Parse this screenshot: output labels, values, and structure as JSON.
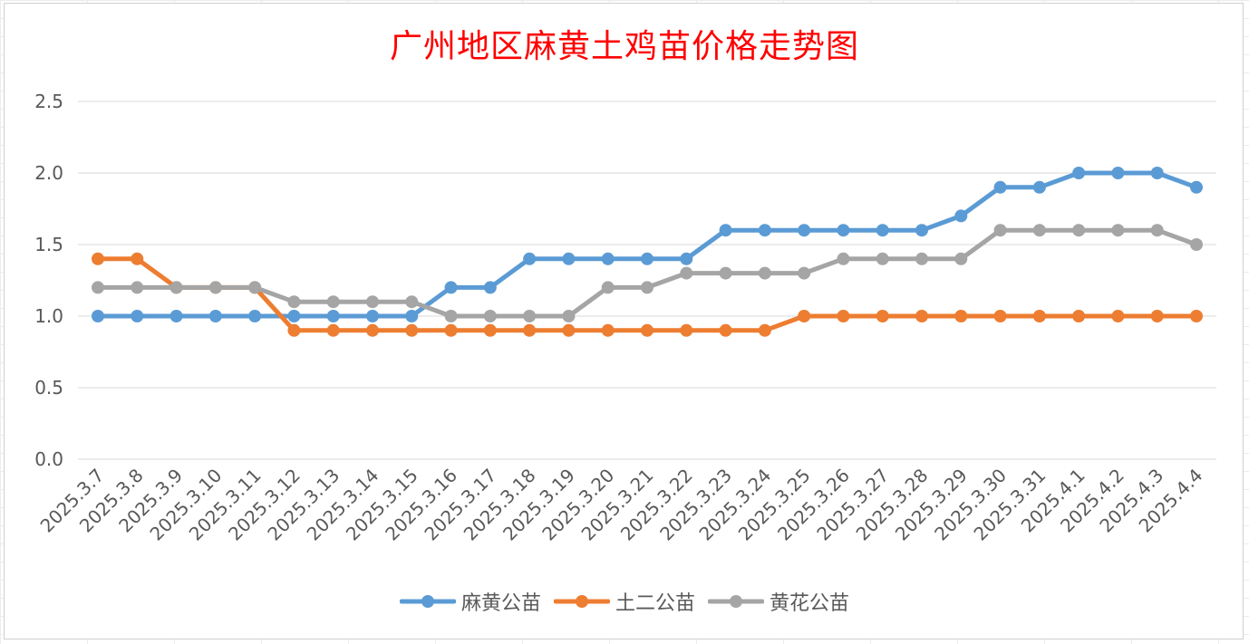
{
  "chart_data": {
    "type": "line",
    "title": "广州地区麻黄土鸡苗价格走势图",
    "xlabel": "",
    "ylabel": "",
    "ylim": [
      0,
      2.5
    ],
    "yticks": [
      "0.0",
      "0.5",
      "1.0",
      "1.5",
      "2.0",
      "2.5"
    ],
    "grid": true,
    "legend_position": "bottom",
    "categories": [
      "2025.3.7",
      "2025.3.8",
      "2025.3.9",
      "2025.3.10",
      "2025.3.11",
      "2025.3.12",
      "2025.3.13",
      "2025.3.14",
      "2025.3.15",
      "2025.3.16",
      "2025.3.17",
      "2025.3.18",
      "2025.3.19",
      "2025.3.20",
      "2025.3.21",
      "2025.3.22",
      "2025.3.23",
      "2025.3.24",
      "2025.3.25",
      "2025.3.26",
      "2025.3.27",
      "2025.3.28",
      "2025.3.29",
      "2025.3.30",
      "2025.3.31",
      "2025.4.1",
      "2025.4.2",
      "2025.4.3",
      "2025.4.4"
    ],
    "series": [
      {
        "name": "麻黄公苗",
        "color": "#5b9bd5",
        "values": [
          1.0,
          1.0,
          1.0,
          1.0,
          1.0,
          1.0,
          1.0,
          1.0,
          1.0,
          1.2,
          1.2,
          1.4,
          1.4,
          1.4,
          1.4,
          1.4,
          1.6,
          1.6,
          1.6,
          1.6,
          1.6,
          1.6,
          1.7,
          1.9,
          1.9,
          2.0,
          2.0,
          2.0,
          1.9
        ]
      },
      {
        "name": "土二公苗",
        "color": "#ed7d31",
        "values": [
          1.4,
          1.4,
          1.2,
          1.2,
          1.2,
          0.9,
          0.9,
          0.9,
          0.9,
          0.9,
          0.9,
          0.9,
          0.9,
          0.9,
          0.9,
          0.9,
          0.9,
          0.9,
          1.0,
          1.0,
          1.0,
          1.0,
          1.0,
          1.0,
          1.0,
          1.0,
          1.0,
          1.0,
          1.0
        ]
      },
      {
        "name": "黄花公苗",
        "color": "#a5a5a5",
        "values": [
          1.2,
          1.2,
          1.2,
          1.2,
          1.2,
          1.1,
          1.1,
          1.1,
          1.1,
          1.0,
          1.0,
          1.0,
          1.0,
          1.2,
          1.2,
          1.3,
          1.3,
          1.3,
          1.3,
          1.4,
          1.4,
          1.4,
          1.4,
          1.6,
          1.6,
          1.6,
          1.6,
          1.6,
          1.5
        ]
      }
    ]
  }
}
